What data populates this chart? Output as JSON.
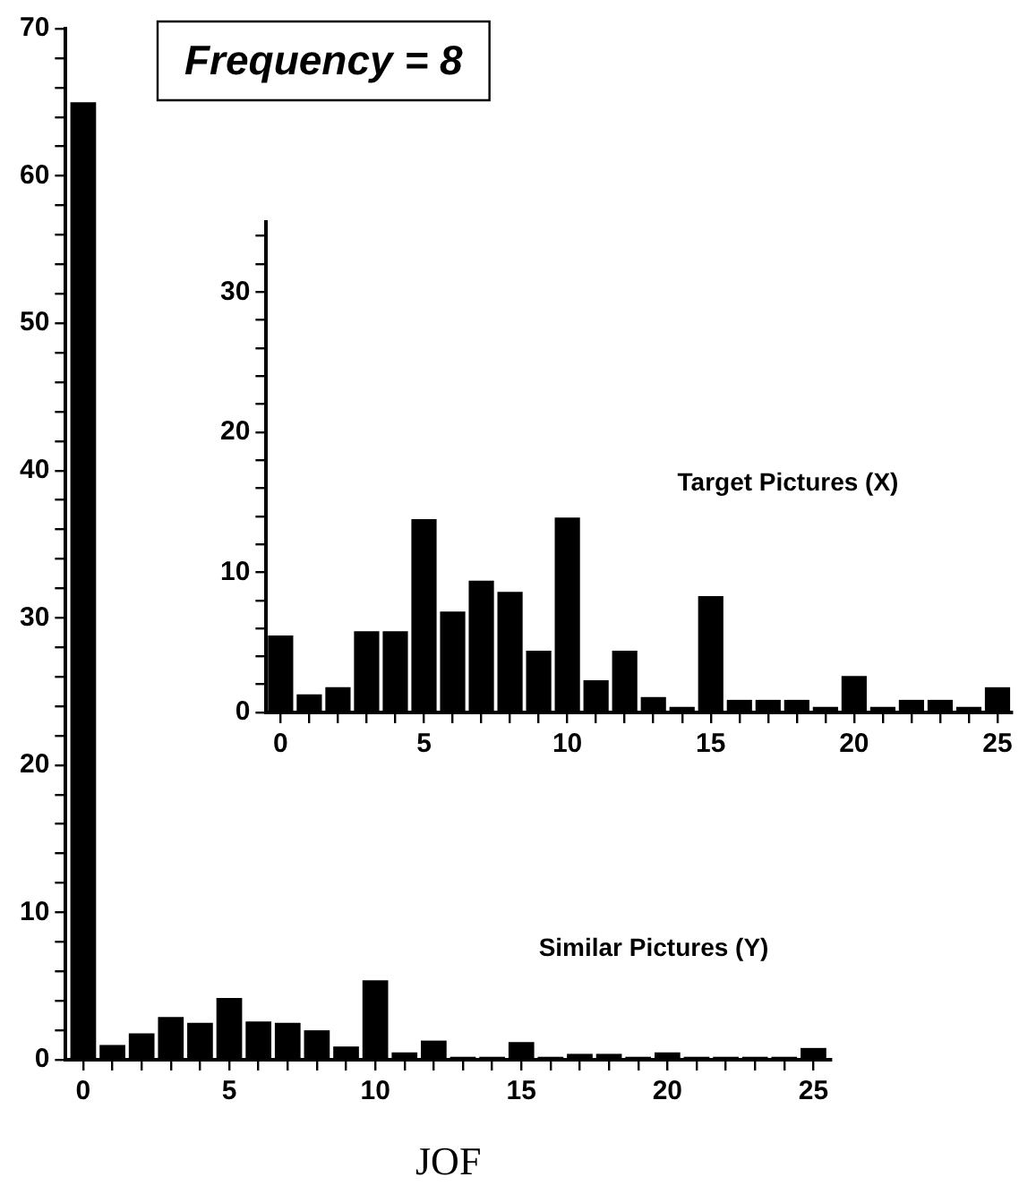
{
  "chart_data": [
    {
      "type": "bar",
      "title": "Frequency = 8",
      "xlabel": "JOF",
      "annotations": [
        "Similar Pictures (Y)"
      ],
      "color": "#000000",
      "x": [
        0,
        1,
        2,
        3,
        4,
        5,
        6,
        7,
        8,
        9,
        10,
        11,
        12,
        13,
        14,
        15,
        16,
        17,
        18,
        19,
        20,
        21,
        22,
        23,
        24,
        25
      ],
      "values": [
        65,
        1.0,
        1.8,
        2.9,
        2.5,
        4.2,
        2.6,
        2.5,
        2.0,
        0.9,
        5.4,
        0.5,
        1.3,
        0.2,
        0.2,
        1.2,
        0.2,
        0.4,
        0.4,
        0.2,
        0.5,
        0.2,
        0.2,
        0.2,
        0.2,
        0.8
      ],
      "xlim": [
        -0.6,
        25.6
      ],
      "ylim": [
        0,
        70
      ],
      "xticks": [
        0,
        {
          "value": 1,
          "label": null
        },
        {
          "value": 2,
          "label": null
        },
        {
          "value": 3,
          "label": null
        },
        {
          "value": 4,
          "label": null
        },
        5,
        {
          "value": 6,
          "label": null
        },
        {
          "value": 7,
          "label": null
        },
        {
          "value": 8,
          "label": null
        },
        {
          "value": 9,
          "label": null
        },
        10,
        {
          "value": 11,
          "label": null
        },
        {
          "value": 12,
          "label": null
        },
        {
          "value": 13,
          "label": null
        },
        {
          "value": 14,
          "label": null
        },
        15,
        {
          "value": 16,
          "label": null
        },
        {
          "value": 17,
          "label": null
        },
        {
          "value": 18,
          "label": null
        },
        {
          "value": 19,
          "label": null
        },
        20,
        {
          "value": 21,
          "label": null
        },
        {
          "value": 22,
          "label": null
        },
        {
          "value": 23,
          "label": null
        },
        {
          "value": 24,
          "label": null
        },
        25
      ],
      "yticks": [
        0,
        {
          "value": 2,
          "label": null
        },
        {
          "value": 4,
          "label": null
        },
        {
          "value": 6,
          "label": null
        },
        {
          "value": 8,
          "label": null
        },
        10,
        {
          "value": 12,
          "label": null
        },
        {
          "value": 14,
          "label": null
        },
        {
          "value": 16,
          "label": null
        },
        {
          "value": 18,
          "label": null
        },
        20,
        {
          "value": 22,
          "label": null
        },
        {
          "value": 24,
          "label": null
        },
        {
          "value": 26,
          "label": null
        },
        {
          "value": 28,
          "label": null
        },
        30,
        {
          "value": 32,
          "label": null
        },
        {
          "value": 34,
          "label": null
        },
        {
          "value": 36,
          "label": null
        },
        {
          "value": 38,
          "label": null
        },
        40,
        {
          "value": 42,
          "label": null
        },
        {
          "value": 44,
          "label": null
        },
        {
          "value": 46,
          "label": null
        },
        {
          "value": 48,
          "label": null
        },
        50,
        {
          "value": 52,
          "label": null
        },
        {
          "value": 54,
          "label": null
        },
        {
          "value": 56,
          "label": null
        },
        {
          "value": 58,
          "label": null
        },
        60,
        {
          "value": 62,
          "label": null
        },
        {
          "value": 64,
          "label": null
        },
        {
          "value": 66,
          "label": null
        },
        {
          "value": 68,
          "label": null
        },
        70
      ],
      "grid": false,
      "legend": false
    },
    {
      "type": "bar",
      "annotations": [
        "Target Pictures (X)"
      ],
      "color": "#000000",
      "x": [
        0,
        1,
        2,
        3,
        4,
        5,
        6,
        7,
        8,
        9,
        10,
        11,
        12,
        13,
        14,
        15,
        16,
        17,
        18,
        19,
        20,
        21,
        22,
        23,
        24,
        25
      ],
      "values": [
        5.5,
        1.3,
        1.8,
        5.8,
        5.8,
        13.8,
        7.2,
        9.4,
        8.6,
        4.4,
        13.9,
        2.3,
        4.4,
        1.1,
        0.4,
        8.3,
        0.9,
        0.9,
        0.9,
        0.4,
        2.6,
        0.4,
        0.9,
        0.9,
        0.4,
        1.8
      ],
      "xlim": [
        -0.5,
        25.5
      ],
      "ylim": [
        0,
        35
      ],
      "xticks": [
        0,
        {
          "value": 1,
          "label": null
        },
        {
          "value": 2,
          "label": null
        },
        {
          "value": 3,
          "label": null
        },
        {
          "value": 4,
          "label": null
        },
        5,
        {
          "value": 6,
          "label": null
        },
        {
          "value": 7,
          "label": null
        },
        {
          "value": 8,
          "label": null
        },
        {
          "value": 9,
          "label": null
        },
        10,
        {
          "value": 11,
          "label": null
        },
        {
          "value": 12,
          "label": null
        },
        {
          "value": 13,
          "label": null
        },
        {
          "value": 14,
          "label": null
        },
        15,
        {
          "value": 16,
          "label": null
        },
        {
          "value": 17,
          "label": null
        },
        {
          "value": 18,
          "label": null
        },
        {
          "value": 19,
          "label": null
        },
        20,
        {
          "value": 21,
          "label": null
        },
        {
          "value": 22,
          "label": null
        },
        {
          "value": 23,
          "label": null
        },
        {
          "value": 24,
          "label": null
        },
        25
      ],
      "yticks": [
        0,
        {
          "value": 2,
          "label": null
        },
        {
          "value": 4,
          "label": null
        },
        {
          "value": 6,
          "label": null
        },
        {
          "value": 8,
          "label": null
        },
        10,
        {
          "value": 12,
          "label": null
        },
        {
          "value": 14,
          "label": null
        },
        {
          "value": 16,
          "label": null
        },
        {
          "value": 18,
          "label": null
        },
        20,
        {
          "value": 22,
          "label": null
        },
        {
          "value": 24,
          "label": null
        },
        {
          "value": 26,
          "label": null
        },
        {
          "value": 28,
          "label": null
        },
        30,
        {
          "value": 32,
          "label": null
        },
        {
          "value": 34,
          "label": null
        }
      ],
      "grid": false,
      "legend": false
    }
  ]
}
